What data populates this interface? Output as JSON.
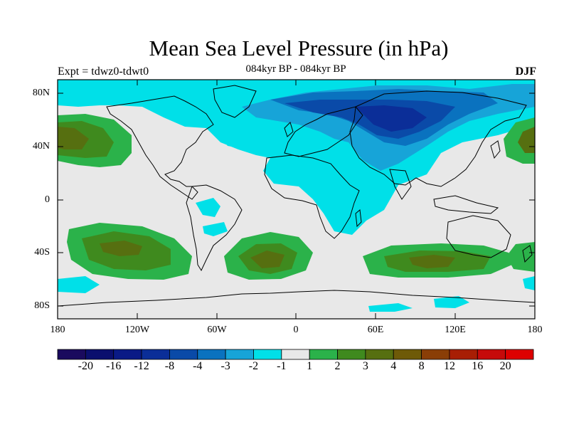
{
  "header": {
    "title": "Mean Sea Level Pressure (in hPa)",
    "left_subtitle": "Expt = tdwz0-tdwt0",
    "center_subtitle": "084kyr BP - 084kyr BP",
    "right_subtitle": "DJF"
  },
  "axes": {
    "lat_labels": [
      "80N",
      "40N",
      "0",
      "40S",
      "80S"
    ],
    "lon_labels": [
      "180",
      "120W",
      "60W",
      "0",
      "60E",
      "120E",
      "180"
    ]
  },
  "colorbar": {
    "labels": [
      "-20",
      "-16",
      "-12",
      "-8",
      "-4",
      "-3",
      "-2",
      "-1",
      "1",
      "2",
      "3",
      "4",
      "8",
      "12",
      "16",
      "20"
    ],
    "colors": [
      "#1a0a5e",
      "#0b0f6e",
      "#0a1a86",
      "#0b2e98",
      "#0a4aa8",
      "#0a72bf",
      "#17a4d8",
      "#00e0e8",
      "#e8e8e8",
      "#2bb24a",
      "#3f8a1e",
      "#566f10",
      "#6e5a08",
      "#8a3e06",
      "#a81e04",
      "#c60a0a",
      "#dd0000"
    ]
  },
  "map": {
    "projection": "cylindrical equidistant",
    "lon_range": [
      -180,
      180
    ],
    "lat_range": [
      -90,
      90
    ]
  }
}
